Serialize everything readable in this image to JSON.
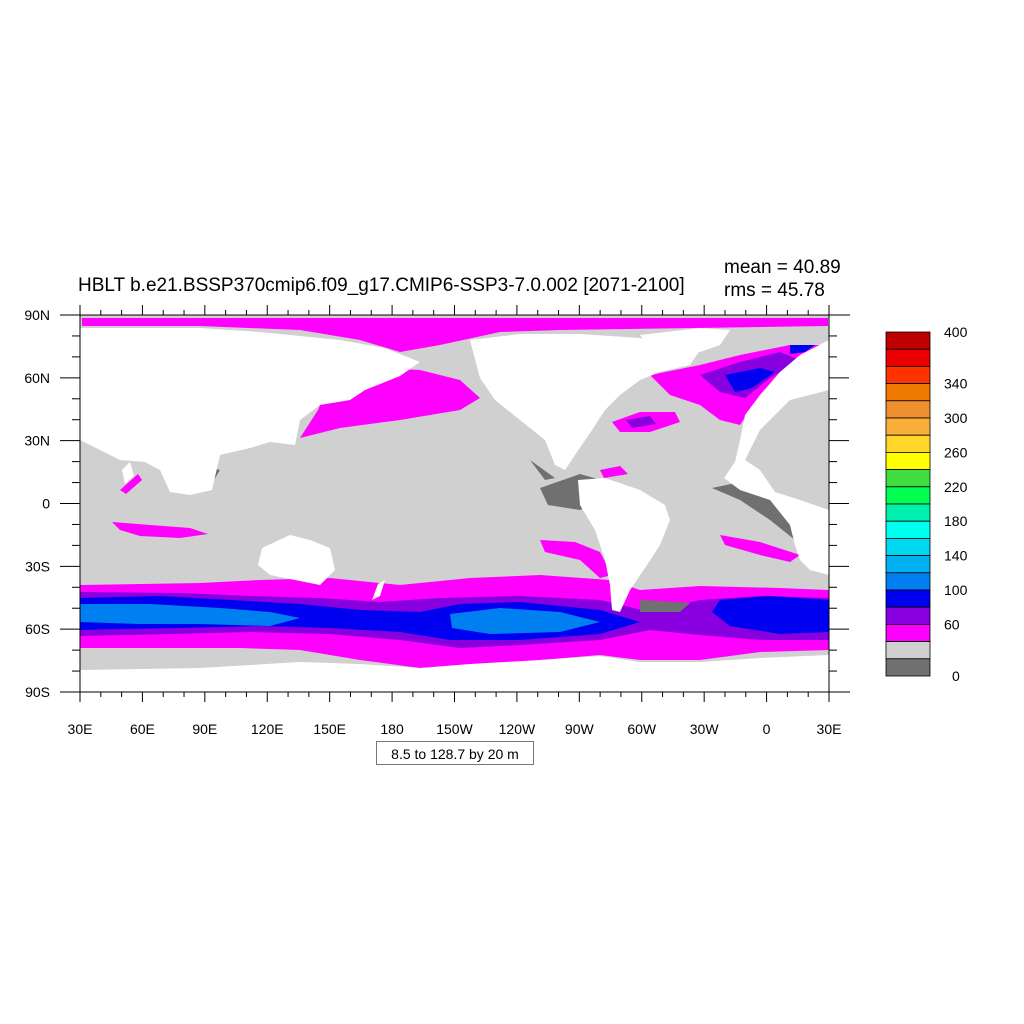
{
  "title": "HBLT b.e21.BSSP370cmip6.f09_g17.CMIP6-SSP3-7.0.002 [2071-2100]",
  "stats": {
    "mean": "mean = 40.89",
    "rms": "rms = 45.78"
  },
  "contour_info": "8.5 to 128.7 by 20 m",
  "axes": {
    "lon_labels": [
      "30E",
      "60E",
      "90E",
      "120E",
      "150E",
      "180",
      "150W",
      "120W",
      "90W",
      "60W",
      "30W",
      "0",
      "30E"
    ],
    "lat_labels": [
      "90N",
      "60N",
      "30N",
      "0",
      "30S",
      "60S",
      "90S"
    ]
  },
  "colorbar": {
    "labels": [
      "400",
      "340",
      "300",
      "260",
      "220",
      "180",
      "140",
      "100",
      "60",
      "0"
    ],
    "colors": [
      "#c00000",
      "#e80000",
      "#ff3300",
      "#f07a00",
      "#f08f30",
      "#fcae3c",
      "#fed72a",
      "#ffff00",
      "#40dc40",
      "#00ff50",
      "#00f0b0",
      "#00ffee",
      "#00d8f0",
      "#00b0f0",
      "#0080f0",
      "#0000f0",
      "#8800e0",
      "#ff00ff",
      "#d0d0d0",
      "#707070"
    ]
  },
  "palette": {
    "land": "#ffffff",
    "ocean_low": "#d0d0d0",
    "ocean_lowest": "#707070",
    "band_60": "#ff00ff",
    "band_80": "#8800e0",
    "band_100": "#0000f0",
    "band_120": "#0080f0"
  }
}
